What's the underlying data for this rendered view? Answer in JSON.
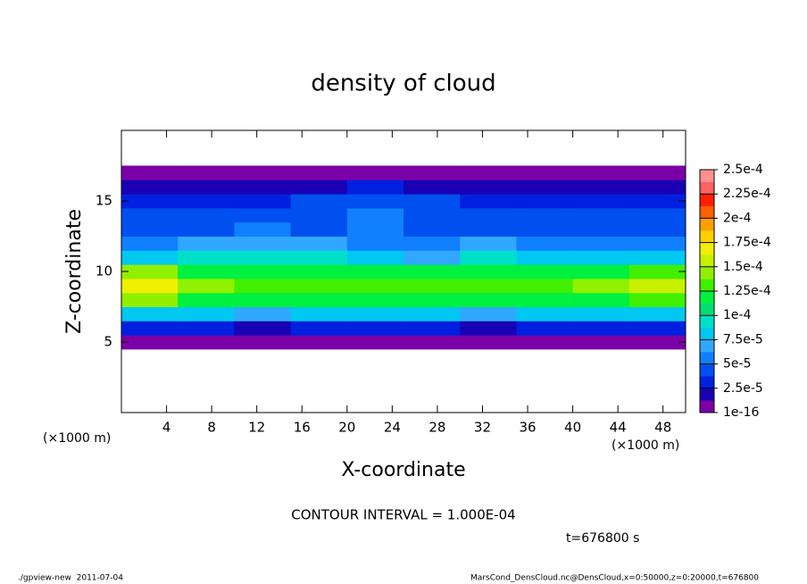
{
  "chart_data": {
    "type": "contour",
    "title": "density of cloud",
    "xlabel": "X-coordinate",
    "ylabel": "Z-coordinate",
    "x_unit": "(×1000 m)",
    "xlim": [
      0,
      50
    ],
    "ylim": [
      0,
      20
    ],
    "xticks": [
      4,
      8,
      12,
      16,
      20,
      24,
      28,
      32,
      36,
      40,
      44,
      48
    ],
    "yticks": [
      5,
      10,
      15
    ],
    "field": {
      "x": [
        2.5,
        7.5,
        12.5,
        17.5,
        22.5,
        27.5,
        32.5,
        37.5,
        42.5,
        47.5
      ],
      "z": [
        5,
        6,
        7,
        8,
        9,
        10,
        11,
        12,
        13,
        14,
        15,
        16,
        17
      ],
      "values": [
        [
          5e-06,
          5e-06,
          5e-06,
          5e-06,
          5e-06,
          5e-06,
          5e-06,
          5e-06,
          5e-06,
          5e-06
        ],
        [
          3e-05,
          3e-05,
          2.5e-05,
          3e-05,
          3.5e-05,
          3e-05,
          2.5e-05,
          3e-05,
          3e-05,
          3e-05
        ],
        [
          8e-05,
          8e-05,
          7.5e-05,
          8e-05,
          8.5e-05,
          8e-05,
          7.5e-05,
          8e-05,
          8e-05,
          8e-05
        ],
        [
          0.00014,
          0.00012,
          0.000115,
          0.000115,
          0.00012,
          0.000115,
          0.000115,
          0.000115,
          0.00012,
          0.00013
        ],
        [
          0.000165,
          0.00014,
          0.000135,
          0.00013,
          0.000135,
          0.00013,
          0.000135,
          0.000135,
          0.00014,
          0.000155
        ],
        [
          0.00014,
          0.000125,
          0.000125,
          0.00012,
          0.00012,
          0.000115,
          0.00012,
          0.00012,
          0.000125,
          0.000135
        ],
        [
          8e-05,
          9e-05,
          0.0001,
          0.0001,
          8e-05,
          7e-05,
          9e-05,
          8e-05,
          8e-05,
          8e-05
        ],
        [
          6e-05,
          6.5e-05,
          7.5e-05,
          7.5e-05,
          6e-05,
          5.5e-05,
          6.5e-05,
          6e-05,
          5.5e-05,
          5.5e-05
        ],
        [
          4.5e-05,
          5e-05,
          5.5e-05,
          5e-05,
          5.5e-05,
          4.5e-05,
          5e-05,
          5e-05,
          4.5e-05,
          4.5e-05
        ],
        [
          4e-05,
          4e-05,
          4e-05,
          4.5e-05,
          5.5e-05,
          4.5e-05,
          4e-05,
          4e-05,
          4e-05,
          4e-05
        ],
        [
          3.5e-05,
          3.5e-05,
          3.5e-05,
          4e-05,
          5e-05,
          4e-05,
          3.5e-05,
          3.5e-05,
          3.5e-05,
          3.5e-05
        ],
        [
          2.5e-05,
          2.5e-05,
          2.5e-05,
          2.5e-05,
          3e-05,
          2.5e-05,
          2.5e-05,
          2.5e-05,
          2.5e-05,
          2.5e-05
        ],
        [
          5e-06,
          5e-06,
          5e-06,
          5e-06,
          5e-06,
          5e-06,
          5e-06,
          5e-06,
          5e-06,
          5e-06
        ]
      ]
    },
    "colorbar": {
      "lim": [
        1e-16,
        0.00025
      ],
      "colors": [
        "#7a00a8",
        "#1a00b4",
        "#0020e0",
        "#0050f0",
        "#1080ff",
        "#30a8ff",
        "#00c8f0",
        "#00e0c8",
        "#00e070",
        "#00f040",
        "#40f000",
        "#90f000",
        "#c8f000",
        "#f0f000",
        "#ffd000",
        "#ffa000",
        "#ff6000",
        "#ff2000",
        "#ff6060",
        "#ff9090"
      ],
      "ticks": [
        {
          "value": 1e-16,
          "label": "1e-16"
        },
        {
          "value": 2.5e-05,
          "label": "2.5e-5"
        },
        {
          "value": 5e-05,
          "label": "5e-5"
        },
        {
          "value": 7.5e-05,
          "label": "7.5e-5"
        },
        {
          "value": 0.0001,
          "label": "1e-4"
        },
        {
          "value": 0.000125,
          "label": "1.25e-4"
        },
        {
          "value": 0.00015,
          "label": "1.5e-4"
        },
        {
          "value": 0.000175,
          "label": "1.75e-4"
        },
        {
          "value": 0.0002,
          "label": "2e-4"
        },
        {
          "value": 0.000225,
          "label": "2.25e-4"
        },
        {
          "value": 0.00025,
          "label": "2.5e-4"
        }
      ]
    },
    "contour_note": "CONTOUR INTERVAL = 1.000E-04",
    "time_note": "t=676800 s",
    "footer_left": "./gpview-new  2011-07-04",
    "footer_right": "MarsCond_DensCloud.nc@DensCloud,x=0:50000,z=0:20000,t=676800"
  }
}
